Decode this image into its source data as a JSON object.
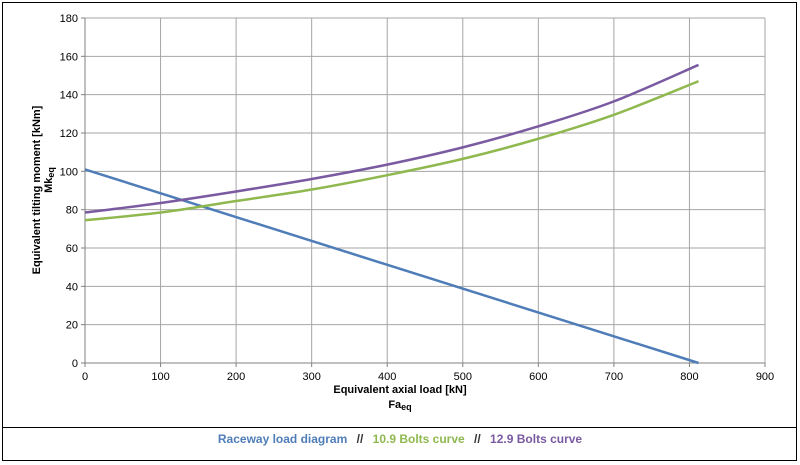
{
  "chart_data": {
    "type": "line",
    "xlabel": "Equivalent axial load [kN]",
    "xlabel_sub": "Fa",
    "xlabel_sub_index": "eq",
    "ylabel": "Equivalent tilting moment [kNm]",
    "ylabel_sub": "Mk",
    "ylabel_sub_index": "eq",
    "xlim": [
      0,
      900
    ],
    "ylim": [
      0,
      180
    ],
    "xticks": [
      0,
      100,
      200,
      300,
      400,
      500,
      600,
      700,
      800,
      900
    ],
    "yticks": [
      0,
      20,
      40,
      60,
      80,
      100,
      120,
      140,
      160,
      180
    ],
    "grid": true,
    "legend_position": "bottom",
    "series": [
      {
        "name": "Raceway load diagram",
        "color": "#4f7db8",
        "x": [
          0,
          812
        ],
        "y": [
          101,
          0
        ]
      },
      {
        "name": "10.9 Bolts curve",
        "color": "#8fb84f",
        "x": [
          0,
          100,
          200,
          300,
          400,
          500,
          600,
          700,
          812
        ],
        "y": [
          74.5,
          78.5,
          84.5,
          90.5,
          98,
          106.5,
          117,
          129.5,
          147
        ]
      },
      {
        "name": "12.9 Bolts curve",
        "color": "#7a5aa0",
        "x": [
          0,
          100,
          200,
          300,
          400,
          500,
          600,
          700,
          812
        ],
        "y": [
          78.5,
          83.5,
          89.5,
          96,
          103.5,
          112.5,
          123.5,
          136.5,
          155.5
        ]
      }
    ]
  },
  "legend": {
    "separator": "//"
  }
}
